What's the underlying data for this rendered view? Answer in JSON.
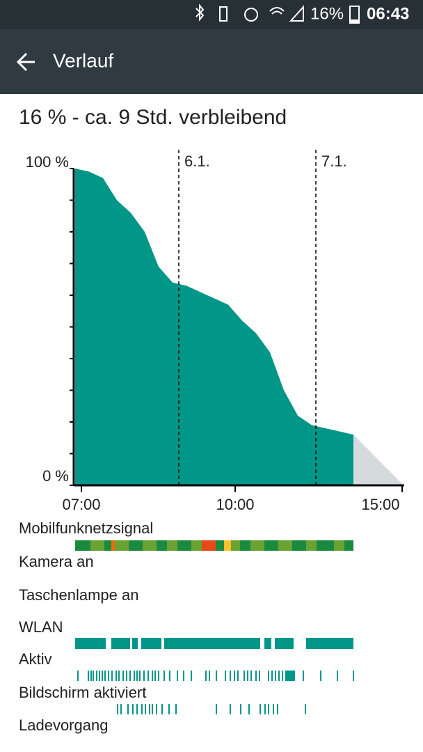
{
  "status_bar": {
    "battery": "16%",
    "time": "06:43"
  },
  "app_bar": {
    "title": "Verlauf"
  },
  "summary": "16 % - ca. 9 Std. verbleibend",
  "chart_data": {
    "type": "area",
    "color": "#009688",
    "projection_color": "#d5dadc",
    "values": [
      100,
      99,
      97,
      90,
      86,
      80,
      69,
      64,
      63,
      61,
      59,
      57,
      52,
      48,
      42,
      30,
      22,
      19,
      18,
      17,
      16
    ],
    "ylim": [
      0,
      100
    ],
    "yticks": [
      {
        "value": 100,
        "label": "100 %"
      },
      {
        "value": 0,
        "label": "0 %"
      }
    ],
    "minor_yticks": [
      10,
      20,
      30,
      40,
      50,
      60,
      70,
      80,
      90
    ],
    "x_labels": [
      "07:00",
      "10:00",
      "15:00"
    ],
    "day_markers": [
      "6.1.",
      "7.1."
    ]
  },
  "rows": [
    "Mobilfunknetzsignal",
    "Kamera an",
    "Taschenlampe an",
    "WLAN",
    "Aktiv",
    "Bildschirm aktiviert",
    "Ladevorgang"
  ]
}
